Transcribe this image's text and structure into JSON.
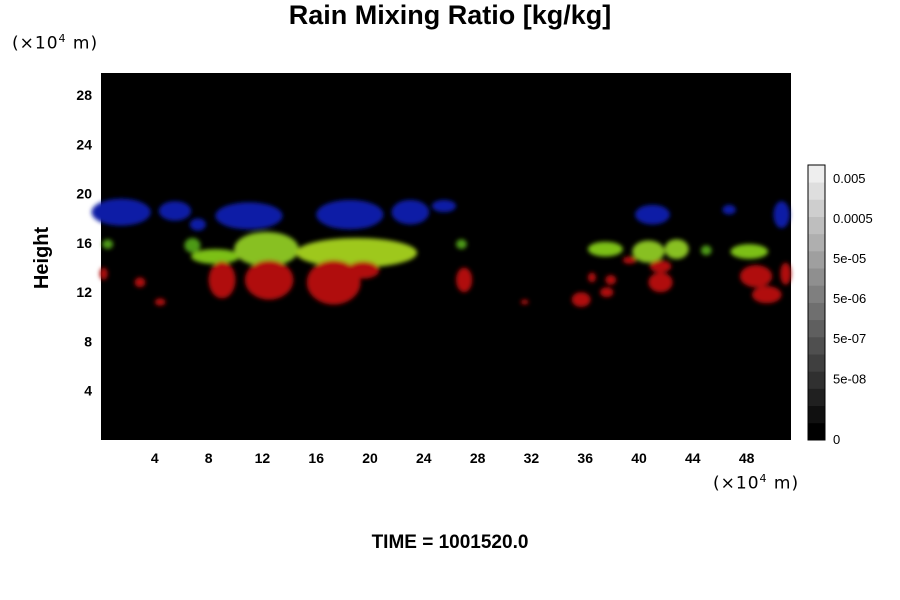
{
  "chart_data": {
    "type": "heatmap",
    "title": "Rain Mixing Ratio [kg/kg]",
    "xlabel": "",
    "ylabel": "Height",
    "x_unit_prefix": "(×10",
    "x_unit_exp": "4",
    "x_unit_suffix": " m)",
    "y_unit_prefix": "(×10",
    "y_unit_exp": "4",
    "y_unit_suffix": " m)",
    "xlim": [
      0,
      51.3
    ],
    "ylim": [
      0,
      29.8
    ],
    "x_ticks": [
      4,
      8,
      12,
      16,
      20,
      24,
      28,
      32,
      36,
      40,
      44,
      48
    ],
    "y_ticks": [
      4,
      8,
      12,
      16,
      20,
      24,
      28
    ],
    "background": "#000000",
    "colorbar": {
      "labels": [
        "0",
        "5e-08",
        "5e-07",
        "5e-06",
        "5e-05",
        "0.0005",
        "0.005"
      ],
      "levels": 16
    },
    "regions": [
      {
        "color": "#0d1aa6",
        "x": 1.5,
        "y": 18.5,
        "rx": 2.2,
        "ry": 1.1
      },
      {
        "color": "#0d1aa6",
        "x": 5.5,
        "y": 18.6,
        "rx": 1.2,
        "ry": 0.8
      },
      {
        "color": "#0d1aa6",
        "x": 7.2,
        "y": 17.5,
        "rx": 0.6,
        "ry": 0.5
      },
      {
        "color": "#0d1aa6",
        "x": 11.0,
        "y": 18.2,
        "rx": 2.5,
        "ry": 1.1
      },
      {
        "color": "#0d1aa6",
        "x": 18.5,
        "y": 18.3,
        "rx": 2.5,
        "ry": 1.2
      },
      {
        "color": "#0d1aa6",
        "x": 23.0,
        "y": 18.5,
        "rx": 1.4,
        "ry": 1.0
      },
      {
        "color": "#0d1aa6",
        "x": 25.5,
        "y": 19.0,
        "rx": 0.9,
        "ry": 0.5
      },
      {
        "color": "#0d1aa6",
        "x": 41.0,
        "y": 18.3,
        "rx": 1.3,
        "ry": 0.8
      },
      {
        "color": "#0d1aa6",
        "x": 46.7,
        "y": 18.7,
        "rx": 0.5,
        "ry": 0.4
      },
      {
        "color": "#0d1aa6",
        "x": 50.6,
        "y": 18.3,
        "rx": 0.6,
        "ry": 1.1
      },
      {
        "color": "#4e9a14",
        "x": 6.8,
        "y": 15.8,
        "rx": 0.6,
        "ry": 0.6
      },
      {
        "color": "#7cc018",
        "x": 8.5,
        "y": 14.9,
        "rx": 1.8,
        "ry": 0.6
      },
      {
        "color": "#88c020",
        "x": 12.3,
        "y": 15.5,
        "rx": 2.4,
        "ry": 1.4
      },
      {
        "color": "#9ec81a",
        "x": 19.0,
        "y": 15.2,
        "rx": 4.5,
        "ry": 1.2
      },
      {
        "color": "#4e9a14",
        "x": 26.8,
        "y": 15.9,
        "rx": 0.4,
        "ry": 0.4
      },
      {
        "color": "#7cc018",
        "x": 37.5,
        "y": 15.5,
        "rx": 1.3,
        "ry": 0.6
      },
      {
        "color": "#88c020",
        "x": 40.7,
        "y": 15.3,
        "rx": 1.2,
        "ry": 0.9
      },
      {
        "color": "#88c020",
        "x": 42.8,
        "y": 15.5,
        "rx": 0.9,
        "ry": 0.8
      },
      {
        "color": "#7cc018",
        "x": 48.2,
        "y": 15.3,
        "rx": 1.4,
        "ry": 0.6
      },
      {
        "color": "#4e9a14",
        "x": 0.5,
        "y": 15.9,
        "rx": 0.4,
        "ry": 0.4
      },
      {
        "color": "#4e9a14",
        "x": 45.0,
        "y": 15.4,
        "rx": 0.4,
        "ry": 0.4
      },
      {
        "color": "#b01010",
        "x": 0.2,
        "y": 13.5,
        "rx": 0.3,
        "ry": 0.5
      },
      {
        "color": "#b01010",
        "x": 2.9,
        "y": 12.8,
        "rx": 0.4,
        "ry": 0.4
      },
      {
        "color": "#b01010",
        "x": 4.4,
        "y": 11.2,
        "rx": 0.4,
        "ry": 0.3
      },
      {
        "color": "#b01010",
        "x": 9.0,
        "y": 13.0,
        "rx": 1.0,
        "ry": 1.5
      },
      {
        "color": "#b01010",
        "x": 12.5,
        "y": 13.0,
        "rx": 1.8,
        "ry": 1.6
      },
      {
        "color": "#b01010",
        "x": 17.3,
        "y": 12.8,
        "rx": 2.0,
        "ry": 1.8
      },
      {
        "color": "#b01010",
        "x": 19.5,
        "y": 13.8,
        "rx": 1.2,
        "ry": 0.7
      },
      {
        "color": "#b01010",
        "x": 27.0,
        "y": 13.0,
        "rx": 0.6,
        "ry": 1.0
      },
      {
        "color": "#b01010",
        "x": 31.5,
        "y": 11.2,
        "rx": 0.3,
        "ry": 0.2
      },
      {
        "color": "#b01010",
        "x": 35.7,
        "y": 11.4,
        "rx": 0.7,
        "ry": 0.6
      },
      {
        "color": "#b01010",
        "x": 36.5,
        "y": 13.2,
        "rx": 0.3,
        "ry": 0.4
      },
      {
        "color": "#b01010",
        "x": 37.6,
        "y": 12.0,
        "rx": 0.5,
        "ry": 0.4
      },
      {
        "color": "#b01010",
        "x": 37.9,
        "y": 13.0,
        "rx": 0.4,
        "ry": 0.4
      },
      {
        "color": "#b01010",
        "x": 39.3,
        "y": 14.6,
        "rx": 0.5,
        "ry": 0.3
      },
      {
        "color": "#b01010",
        "x": 41.6,
        "y": 12.8,
        "rx": 0.9,
        "ry": 0.8
      },
      {
        "color": "#b01010",
        "x": 41.6,
        "y": 14.1,
        "rx": 0.8,
        "ry": 0.5
      },
      {
        "color": "#b01010",
        "x": 48.7,
        "y": 13.3,
        "rx": 1.2,
        "ry": 0.9
      },
      {
        "color": "#b01010",
        "x": 49.5,
        "y": 11.8,
        "rx": 1.1,
        "ry": 0.7
      },
      {
        "color": "#b01010",
        "x": 50.9,
        "y": 13.5,
        "rx": 0.4,
        "ry": 0.9
      }
    ]
  },
  "time_label": "TIME = 1001520.0"
}
